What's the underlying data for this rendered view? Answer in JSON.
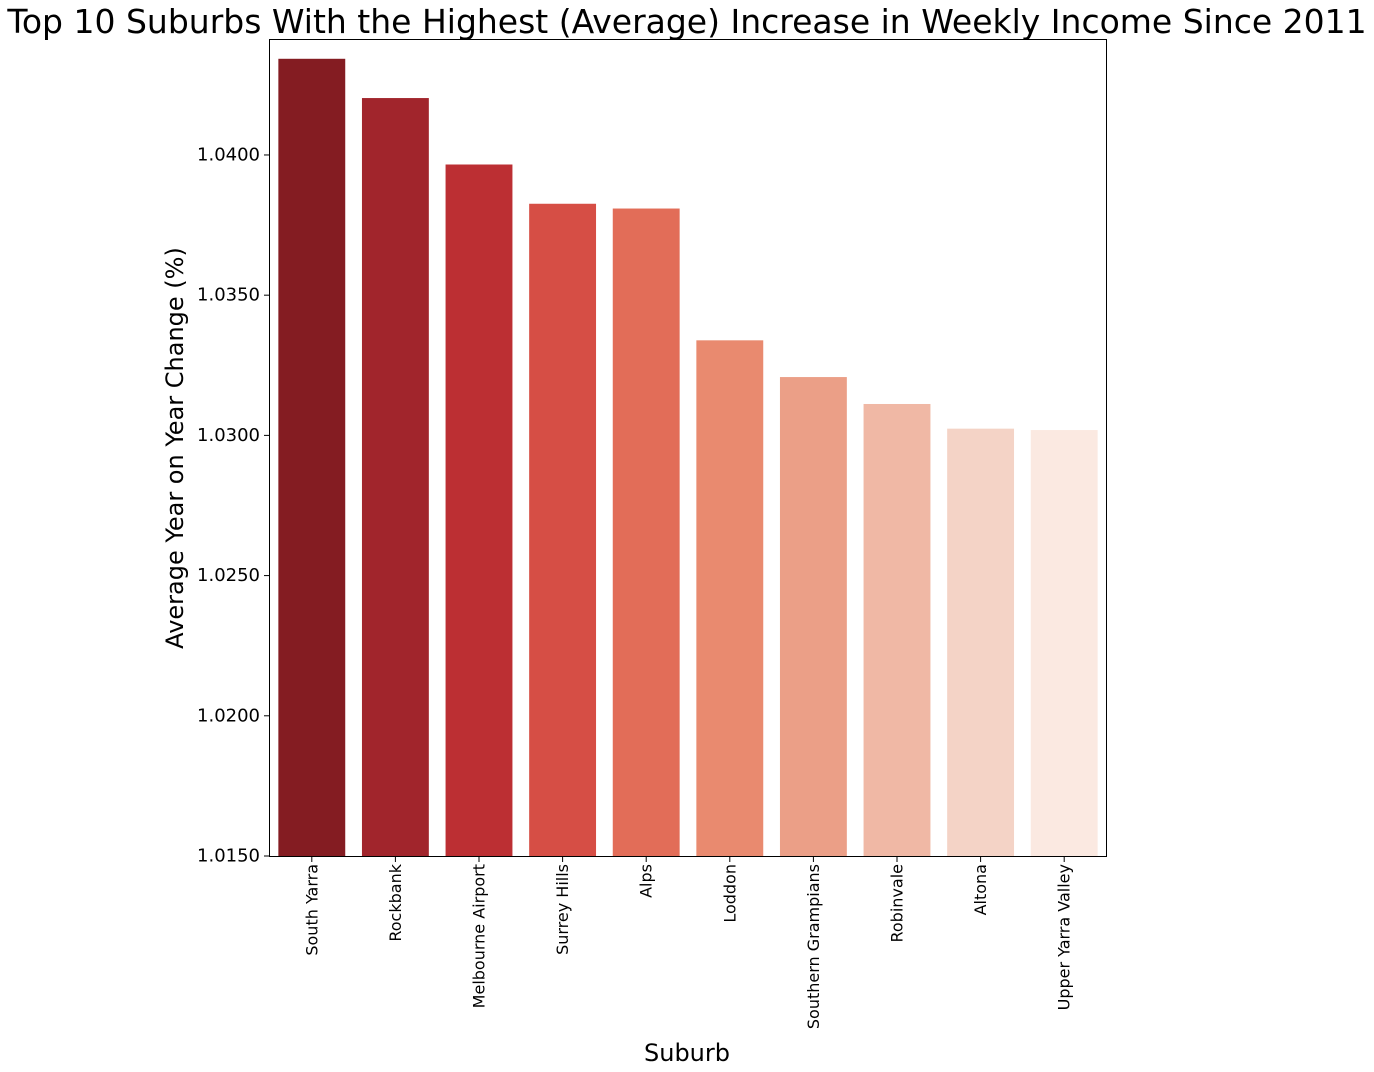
{
  "chart_data": {
    "type": "bar",
    "title": "Top 10 Suburbs With the Highest (Average) Increase in Weekly Income Since 2011",
    "xlabel": "Suburb",
    "ylabel": "Average Year on Year Change (%)",
    "ylim": [
      1.015,
      1.0441
    ],
    "yticks": [
      1.015,
      1.02,
      1.025,
      1.03,
      1.035,
      1.04
    ],
    "ytick_labels": [
      "1.0150",
      "1.0200",
      "1.0250",
      "1.0300",
      "1.0350",
      "1.0400"
    ],
    "grid": false,
    "categories": [
      "South Yarra",
      "Rockbank",
      "Melbourne Airport",
      "Surrey Hills",
      "Alps",
      "Loddon",
      "Southern Grampians",
      "Robinvale",
      "Altona",
      "Upper Yarra Valley"
    ],
    "values": [
      1.04343,
      1.04203,
      1.03966,
      1.03826,
      1.03809,
      1.03339,
      1.03208,
      1.03112,
      1.03024,
      1.03019
    ],
    "colors": [
      "#841c22",
      "#a1252c",
      "#bc2f33",
      "#d64e45",
      "#e26d58",
      "#e98a6f",
      "#eb9f87",
      "#f0b8a5",
      "#f4d3c6",
      "#fbe9e1"
    ]
  }
}
